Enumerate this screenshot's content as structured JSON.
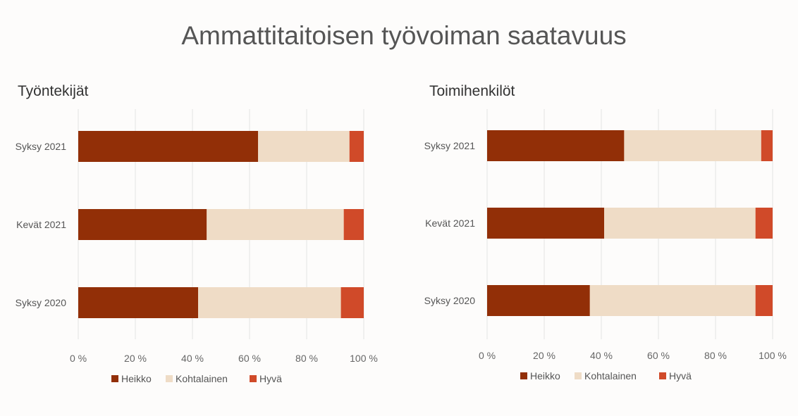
{
  "title": "Ammattitaitoisen työvoiman saatavuus",
  "colors": {
    "Heikko": "#922f07",
    "Kohtalainen": "#efdcc6",
    "Hyvä": "#d04a29",
    "grid": "#e3e3e3",
    "text": "#555555"
  },
  "chart_data": [
    {
      "type": "bar",
      "orientation": "horizontal",
      "stacked": "percent",
      "title": "Työntekijät",
      "categories": [
        "Syksy 2021",
        "Kevät 2021",
        "Syksy 2020"
      ],
      "series": [
        {
          "name": "Heikko",
          "values": [
            63,
            45,
            42
          ]
        },
        {
          "name": "Kohtalainen",
          "values": [
            32,
            48,
            50
          ]
        },
        {
          "name": "Hyvä",
          "values": [
            5,
            7,
            8
          ]
        }
      ],
      "xticks": [
        "0 %",
        "20 %",
        "40 %",
        "60 %",
        "80 %",
        "100 %"
      ],
      "xlim": [
        0,
        100
      ],
      "grid": true,
      "legend": "bottom"
    },
    {
      "type": "bar",
      "orientation": "horizontal",
      "stacked": "percent",
      "title": "Toimihenkilöt",
      "categories": [
        "Syksy 2021",
        "Kevät 2021",
        "Syksy 2020"
      ],
      "series": [
        {
          "name": "Heikko",
          "values": [
            48,
            41,
            36
          ]
        },
        {
          "name": "Kohtalainen",
          "values": [
            48,
            53,
            58
          ]
        },
        {
          "name": "Hyvä",
          "values": [
            4,
            6,
            6
          ]
        }
      ],
      "xticks": [
        "0 %",
        "20 %",
        "40 %",
        "60 %",
        "80 %",
        "100 %"
      ],
      "xlim": [
        0,
        100
      ],
      "grid": true,
      "legend": "bottom"
    }
  ]
}
